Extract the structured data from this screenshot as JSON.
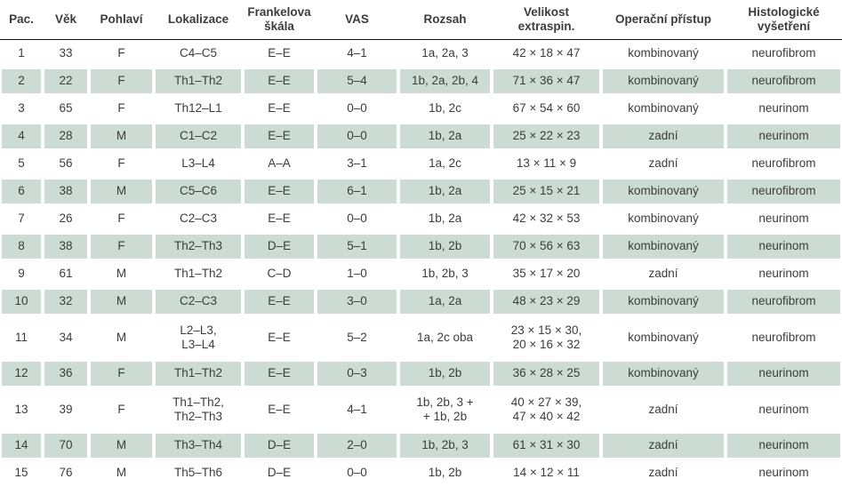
{
  "colors": {
    "row_shade": "#ccdbd4",
    "text": "#3c3c3b",
    "header_rule": "#1a1a1a"
  },
  "table": {
    "columns": [
      {
        "label": "Pac."
      },
      {
        "label": "Věk"
      },
      {
        "label": "Pohlaví"
      },
      {
        "label": "Lokalizace"
      },
      {
        "label": "Frankelova\nškála"
      },
      {
        "label": "VAS"
      },
      {
        "label": "Rozsah"
      },
      {
        "label": "Velikost\nextraspin."
      },
      {
        "label": "Operační přístup"
      },
      {
        "label": "Histologické\nvyšetření"
      }
    ],
    "rows": [
      {
        "shaded": false,
        "cells": [
          "1",
          "33",
          "F",
          "C4–C5",
          "E–E",
          "4–1",
          "1a, 2a, 3",
          "42 × 18 × 47",
          "kombinovaný",
          "neurofibrom"
        ]
      },
      {
        "shaded": true,
        "cells": [
          "2",
          "22",
          "F",
          "Th1–Th2",
          "E–E",
          "5–4",
          "1b, 2a, 2b, 4",
          "71 × 36 × 47",
          "kombinovaný",
          "neurofibrom"
        ]
      },
      {
        "shaded": false,
        "cells": [
          "3",
          "65",
          "F",
          "Th12–L1",
          "E–E",
          "0–0",
          "1b, 2c",
          "67 × 54 × 60",
          "kombinovaný",
          "neurinom"
        ]
      },
      {
        "shaded": true,
        "cells": [
          "4",
          "28",
          "M",
          "C1–C2",
          "E–E",
          "0–0",
          "1b, 2a",
          "25 × 22 × 23",
          "zadní",
          "neurinom"
        ]
      },
      {
        "shaded": false,
        "cells": [
          "5",
          "56",
          "F",
          "L3–L4",
          "A–A",
          "3–1",
          "1a, 2c",
          "13 × 11 × 9",
          "zadní",
          "neurofibrom"
        ]
      },
      {
        "shaded": true,
        "cells": [
          "6",
          "38",
          "M",
          "C5–C6",
          "E–E",
          "6–1",
          "1b, 2a",
          "25 × 15 × 21",
          "kombinovaný",
          "neurofibrom"
        ]
      },
      {
        "shaded": false,
        "cells": [
          "7",
          "26",
          "F",
          "C2–C3",
          "E–E",
          "0–0",
          "1b, 2a",
          "42 × 32 × 53",
          "kombinovaný",
          "neurinom"
        ]
      },
      {
        "shaded": true,
        "cells": [
          "8",
          "38",
          "F",
          "Th2–Th3",
          "D–E",
          "5–1",
          "1b, 2b",
          "70 × 56 × 63",
          "kombinovaný",
          "neurinom"
        ]
      },
      {
        "shaded": false,
        "cells": [
          "9",
          "61",
          "M",
          "Th1–Th2",
          "C–D",
          "1–0",
          "1b, 2b, 3",
          "35 × 17 × 20",
          "zadní",
          "neurinom"
        ]
      },
      {
        "shaded": true,
        "cells": [
          "10",
          "32",
          "M",
          "C2–C3",
          "E–E",
          "3–0",
          "1a, 2a",
          "48 × 23 × 29",
          "kombinovaný",
          "neurofibrom"
        ]
      },
      {
        "shaded": false,
        "cells": [
          "11",
          "34",
          "M",
          "L2–L3,\nL3–L4",
          "E–E",
          "5–2",
          "1a, 2c oba",
          "23 × 15 × 30,\n20 × 16 × 32",
          "kombinovaný",
          "neurofibrom"
        ]
      },
      {
        "shaded": true,
        "cells": [
          "12",
          "36",
          "F",
          "Th1–Th2",
          "E–E",
          "0–3",
          "1b, 2b",
          "36 × 28 × 25",
          "kombinovaný",
          "neurinom"
        ]
      },
      {
        "shaded": false,
        "cells": [
          "13",
          "39",
          "F",
          "Th1–Th2,\nTh2–Th3",
          "E–E",
          "4–1",
          "1b, 2b, 3 +\n+ 1b, 2b",
          "40 × 27 × 39,\n47 × 40 × 42",
          "zadní",
          "neurinom"
        ]
      },
      {
        "shaded": true,
        "cells": [
          "14",
          "70",
          "M",
          "Th3–Th4",
          "D–E",
          "2–0",
          "1b, 2b, 3",
          "61 × 31 × 30",
          "zadní",
          "neurinom"
        ]
      },
      {
        "shaded": false,
        "cells": [
          "15",
          "76",
          "M",
          "Th5–Th6",
          "D–E",
          "0–0",
          "1b, 2b",
          "14 × 12 × 11",
          "zadní",
          "neurinom"
        ]
      }
    ]
  }
}
